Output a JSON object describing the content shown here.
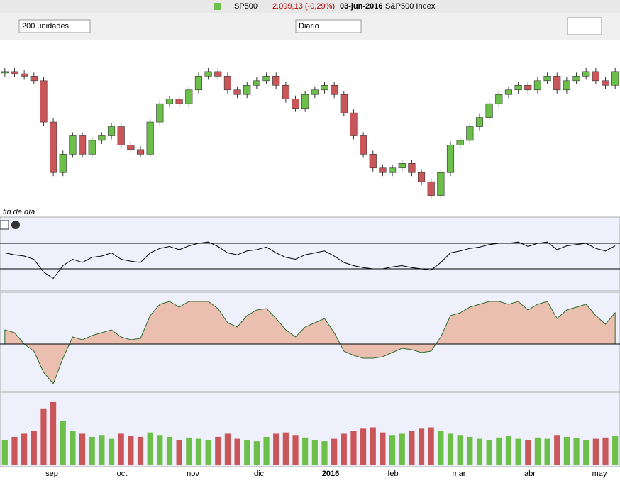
{
  "header": {
    "symbol": "SP500",
    "quote": "2.099,13 (-0,29%)",
    "date": "03-jun-2016",
    "name": "S&P500 Index"
  },
  "toolbar": {
    "period": "200 unidades",
    "interval": "Diario"
  },
  "pane_note": "fin de día",
  "x_labels": [
    "sep",
    "oct",
    "nov",
    "dic",
    "2016",
    "feb",
    "mar",
    "abr",
    "may"
  ],
  "chart_data": {
    "type": "candlestick",
    "price": {
      "ylim": [
        1800,
        2140
      ],
      "values": [
        2100,
        2095,
        2090,
        2080,
        1990,
        1880,
        1920,
        1960,
        1920,
        1950,
        1960,
        1980,
        1940,
        1930,
        1920,
        1990,
        2030,
        2040,
        2030,
        2060,
        2090,
        2100,
        2090,
        2060,
        2050,
        2070,
        2080,
        2090,
        2070,
        2040,
        2020,
        2050,
        2060,
        2070,
        2050,
        2010,
        1960,
        1920,
        1890,
        1880,
        1890,
        1900,
        1880,
        1860,
        1830,
        1880,
        1940,
        1950,
        1980,
        2000,
        2030,
        2050,
        2060,
        2070,
        2060,
        2080,
        2090,
        2060,
        2080,
        2090,
        2100,
        2080,
        2070,
        2100
      ]
    },
    "rsi": {
      "ylim": [
        0,
        100
      ],
      "levels": [
        70,
        30
      ],
      "values": [
        55,
        52,
        50,
        45,
        25,
        15,
        35,
        45,
        40,
        48,
        50,
        55,
        45,
        42,
        40,
        55,
        62,
        65,
        60,
        66,
        70,
        72,
        65,
        55,
        52,
        58,
        60,
        64,
        55,
        48,
        45,
        52,
        55,
        58,
        50,
        40,
        35,
        32,
        30,
        30,
        33,
        35,
        32,
        30,
        28,
        40,
        55,
        58,
        62,
        64,
        68,
        70,
        70,
        72,
        65,
        70,
        72,
        60,
        66,
        68,
        70,
        62,
        58,
        66
      ]
    },
    "oscillator": {
      "ylim": [
        -30,
        32
      ],
      "values": [
        10,
        8,
        0,
        -5,
        -20,
        -28,
        -10,
        5,
        3,
        6,
        8,
        10,
        5,
        3,
        4,
        20,
        28,
        30,
        26,
        30,
        30,
        30,
        25,
        15,
        12,
        20,
        24,
        25,
        18,
        10,
        5,
        12,
        15,
        18,
        8,
        -5,
        -8,
        -10,
        -10,
        -9,
        -6,
        -3,
        -4,
        -6,
        -5,
        5,
        20,
        22,
        26,
        28,
        30,
        30,
        28,
        30,
        24,
        28,
        30,
        18,
        24,
        26,
        28,
        20,
        14,
        22
      ]
    },
    "volume": {
      "ylim": [
        0,
        110
      ],
      "values": [
        40,
        45,
        50,
        55,
        90,
        100,
        70,
        55,
        50,
        45,
        48,
        42,
        50,
        47,
        45,
        52,
        48,
        45,
        40,
        44,
        42,
        40,
        45,
        50,
        42,
        40,
        38,
        45,
        50,
        52,
        48,
        44,
        40,
        38,
        42,
        50,
        55,
        58,
        60,
        52,
        48,
        50,
        55,
        58,
        60,
        55,
        50,
        48,
        45,
        42,
        40,
        44,
        46,
        42,
        40,
        44,
        42,
        48,
        45,
        43,
        40,
        42,
        44,
        46
      ]
    },
    "up_color": "#6cc04a",
    "down_color": "#c9575a"
  }
}
